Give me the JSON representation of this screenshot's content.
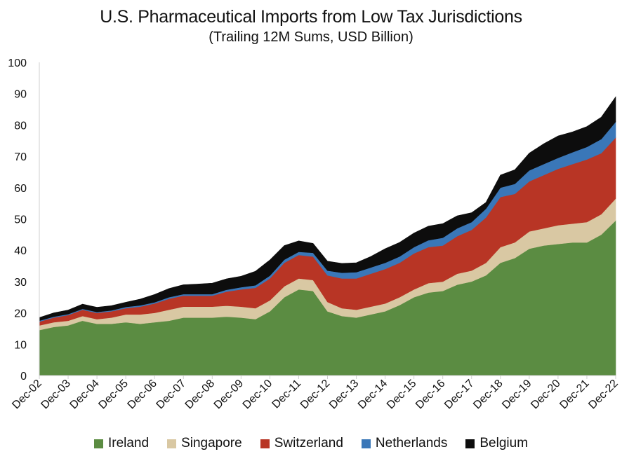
{
  "chart_data": {
    "type": "area",
    "stacked": true,
    "title": "U.S. Pharmaceutical Imports from Low Tax Jurisdictions",
    "subtitle": "(Trailing 12M Sums, USD Billion)",
    "xlabel": "",
    "ylabel": "",
    "ylim": [
      0,
      100
    ],
    "yticks": [
      "0",
      "10",
      "20",
      "30",
      "40",
      "50",
      "60",
      "70",
      "80",
      "90",
      "100"
    ],
    "categories": [
      "Dec-02",
      "Dec-03",
      "Dec-04",
      "Dec-05",
      "Dec-06",
      "Dec-07",
      "Dec-08",
      "Dec-09",
      "Dec-10",
      "Dec-11",
      "Dec-12",
      "Dec-13",
      "Dec-14",
      "Dec-15",
      "Dec-16",
      "Dec-17",
      "Dec-18",
      "Dec-19",
      "Dec-20",
      "Dec-21",
      "Dec-22"
    ],
    "x": [
      0,
      0.5,
      1,
      1.5,
      2,
      2.5,
      3,
      3.5,
      4,
      4.5,
      5,
      5.5,
      6,
      6.5,
      7,
      7.5,
      8,
      8.5,
      9,
      9.5,
      10,
      10.5,
      11,
      11.5,
      12,
      12.5,
      13,
      13.5,
      14,
      14.5,
      15,
      15.5,
      16,
      16.5,
      17,
      17.5,
      18,
      18.5,
      19,
      19.5,
      20
    ],
    "series": [
      {
        "name": "Ireland",
        "color": "#5b8c42",
        "values": [
          14.5,
          15.5,
          16.0,
          17.5,
          16.5,
          16.5,
          17.0,
          16.5,
          17.0,
          17.5,
          18.5,
          18.5,
          18.5,
          18.8,
          18.5,
          18.0,
          20.5,
          25.0,
          27.5,
          27.0,
          20.5,
          19.0,
          18.5,
          19.5,
          20.5,
          22.5,
          25.0,
          26.5,
          27.0,
          29.0,
          30.0,
          32.0,
          36.0,
          37.5,
          40.5,
          41.5,
          42.0,
          42.5,
          42.5,
          45.0,
          49.5
        ]
      },
      {
        "name": "Singapore",
        "color": "#d9c8a3",
        "values": [
          1.5,
          1.5,
          1.5,
          1.5,
          1.5,
          2.0,
          2.5,
          3.0,
          3.0,
          3.5,
          3.5,
          3.5,
          3.5,
          3.5,
          3.5,
          3.5,
          3.5,
          3.5,
          3.5,
          3.5,
          3.0,
          2.5,
          2.5,
          2.5,
          2.5,
          2.5,
          2.5,
          3.0,
          3.0,
          3.5,
          3.5,
          4.0,
          5.0,
          5.0,
          5.5,
          5.5,
          6.0,
          6.0,
          6.5,
          6.5,
          7.0
        ]
      },
      {
        "name": "Switzerland",
        "color": "#b83525",
        "values": [
          1.2,
          1.5,
          1.8,
          2.0,
          2.0,
          2.0,
          2.0,
          2.5,
          3.0,
          3.5,
          3.5,
          3.5,
          3.5,
          4.5,
          5.5,
          6.5,
          7.0,
          7.5,
          7.5,
          7.5,
          8.5,
          9.5,
          10.0,
          10.5,
          11.0,
          11.0,
          11.5,
          11.5,
          11.5,
          12.0,
          13.0,
          14.5,
          16.0,
          15.5,
          16.0,
          17.0,
          18.0,
          19.0,
          20.0,
          19.5,
          19.5
        ]
      },
      {
        "name": "Netherlands",
        "color": "#3a77b8",
        "values": [
          0.3,
          0.3,
          0.3,
          0.3,
          0.3,
          0.3,
          0.4,
          0.4,
          0.4,
          0.5,
          0.5,
          0.5,
          0.5,
          0.6,
          0.7,
          0.8,
          0.9,
          1.0,
          1.0,
          1.2,
          1.5,
          1.8,
          2.0,
          2.0,
          2.0,
          2.0,
          2.0,
          2.2,
          2.5,
          2.5,
          2.5,
          2.8,
          3.0,
          3.2,
          3.5,
          3.5,
          3.5,
          3.8,
          4.0,
          4.5,
          5.0
        ]
      },
      {
        "name": "Belgium",
        "color": "#0d0d0d",
        "values": [
          1.0,
          1.2,
          1.3,
          1.5,
          1.5,
          1.5,
          1.5,
          2.0,
          2.5,
          2.8,
          3.0,
          3.2,
          3.5,
          3.5,
          3.5,
          4.5,
          5.0,
          4.5,
          3.5,
          3.0,
          3.0,
          3.0,
          3.0,
          3.5,
          4.5,
          4.5,
          4.5,
          4.5,
          4.5,
          4.0,
          3.0,
          2.0,
          4.0,
          4.5,
          5.5,
          6.5,
          7.0,
          6.5,
          6.5,
          7.0,
          8.0
        ]
      }
    ],
    "legend_position": "bottom"
  }
}
